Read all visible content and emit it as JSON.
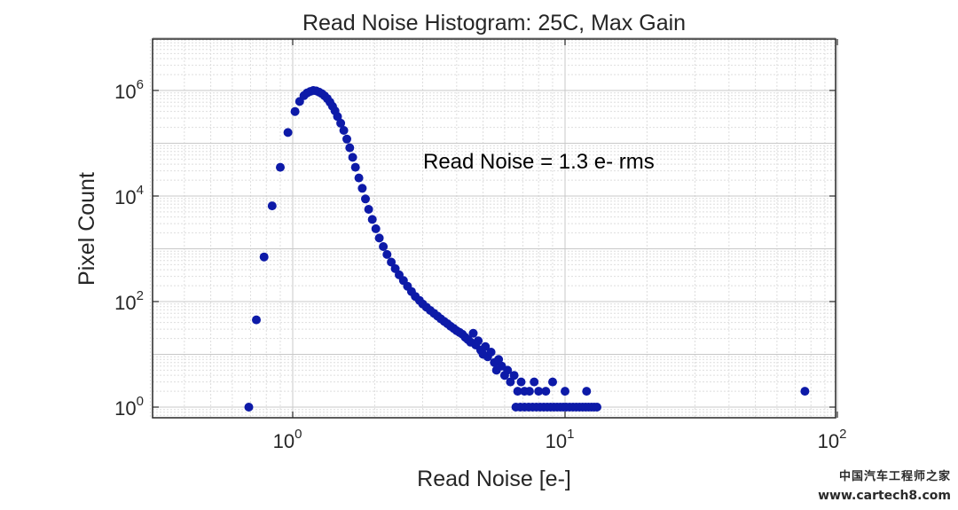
{
  "chart_data": {
    "type": "scatter",
    "title": "Read Noise Histogram: 25C, Max Gain",
    "xlabel": "Read Noise [e-]",
    "ylabel": "Pixel Count",
    "xscale": "log",
    "yscale": "log",
    "xlim": [
      0.3,
      100
    ],
    "ylim": [
      0.7,
      10000000
    ],
    "grid": true,
    "minor_grid": true,
    "marker_color": "#0d1aa8",
    "annotation": "Read Noise = 1.3 e- rms",
    "xticks": [
      {
        "base": "10",
        "exp": "0",
        "value": 1
      },
      {
        "base": "10",
        "exp": "1",
        "value": 10
      },
      {
        "base": "10",
        "exp": "2",
        "value": 100
      }
    ],
    "yticks": [
      {
        "base": "10",
        "exp": "0",
        "value": 1
      },
      {
        "base": "10",
        "exp": "2",
        "value": 100
      },
      {
        "base": "10",
        "exp": "4",
        "value": 10000
      },
      {
        "base": "10",
        "exp": "6",
        "value": 1000000
      }
    ],
    "points": [
      [
        0.69,
        1
      ],
      [
        0.735,
        45
      ],
      [
        0.785,
        700
      ],
      [
        0.84,
        6500
      ],
      [
        0.9,
        35000
      ],
      [
        0.96,
        160000
      ],
      [
        1.02,
        400000
      ],
      [
        1.06,
        620000
      ],
      [
        1.1,
        800000
      ],
      [
        1.13,
        900000
      ],
      [
        1.16,
        960000
      ],
      [
        1.19,
        1000000
      ],
      [
        1.22,
        980000
      ],
      [
        1.25,
        930000
      ],
      [
        1.28,
        870000
      ],
      [
        1.31,
        790000
      ],
      [
        1.34,
        700000
      ],
      [
        1.37,
        600000
      ],
      [
        1.4,
        500000
      ],
      [
        1.43,
        410000
      ],
      [
        1.46,
        320000
      ],
      [
        1.5,
        240000
      ],
      [
        1.54,
        175000
      ],
      [
        1.58,
        120000
      ],
      [
        1.62,
        82000
      ],
      [
        1.66,
        54000
      ],
      [
        1.7,
        35000
      ],
      [
        1.75,
        22000
      ],
      [
        1.8,
        14000
      ],
      [
        1.85,
        8800
      ],
      [
        1.9,
        5600
      ],
      [
        1.96,
        3600
      ],
      [
        2.02,
        2400
      ],
      [
        2.08,
        1600
      ],
      [
        2.15,
        1100
      ],
      [
        2.22,
        780
      ],
      [
        2.3,
        560
      ],
      [
        2.38,
        420
      ],
      [
        2.46,
        320
      ],
      [
        2.55,
        250
      ],
      [
        2.64,
        195
      ],
      [
        2.73,
        155
      ],
      [
        2.82,
        125
      ],
      [
        2.92,
        105
      ],
      [
        3.0,
        90
      ],
      [
        3.1,
        78
      ],
      [
        3.2,
        68
      ],
      [
        3.3,
        60
      ],
      [
        3.4,
        53
      ],
      [
        3.5,
        47
      ],
      [
        3.6,
        42
      ],
      [
        3.7,
        38
      ],
      [
        3.8,
        34
      ],
      [
        3.9,
        31
      ],
      [
        4.0,
        28
      ],
      [
        4.1,
        26
      ],
      [
        4.2,
        24
      ],
      [
        4.3,
        21
      ],
      [
        4.4,
        19
      ],
      [
        4.5,
        17
      ],
      [
        4.6,
        25
      ],
      [
        4.7,
        15
      ],
      [
        4.8,
        18
      ],
      [
        4.9,
        12
      ],
      [
        5.0,
        10
      ],
      [
        5.1,
        14
      ],
      [
        5.2,
        9
      ],
      [
        5.35,
        11
      ],
      [
        5.5,
        7
      ],
      [
        5.6,
        5
      ],
      [
        5.7,
        8
      ],
      [
        5.85,
        6
      ],
      [
        6.0,
        4
      ],
      [
        6.15,
        5
      ],
      [
        6.3,
        3
      ],
      [
        6.5,
        4
      ],
      [
        6.7,
        2
      ],
      [
        6.9,
        3
      ],
      [
        7.1,
        2
      ],
      [
        7.4,
        2
      ],
      [
        7.7,
        3
      ],
      [
        8.0,
        2
      ],
      [
        8.5,
        2
      ],
      [
        9.0,
        3
      ],
      [
        10.0,
        2
      ],
      [
        12.0,
        2
      ],
      [
        76.0,
        2
      ],
      [
        6.6,
        1
      ],
      [
        6.85,
        1
      ],
      [
        7.1,
        1
      ],
      [
        7.35,
        1
      ],
      [
        7.6,
        1
      ],
      [
        7.85,
        1
      ],
      [
        8.1,
        1
      ],
      [
        8.35,
        1
      ],
      [
        8.6,
        1
      ],
      [
        8.85,
        1
      ],
      [
        9.1,
        1
      ],
      [
        9.35,
        1
      ],
      [
        9.6,
        1
      ],
      [
        9.85,
        1
      ],
      [
        10.1,
        1
      ],
      [
        10.4,
        1
      ],
      [
        10.7,
        1
      ],
      [
        11.0,
        1
      ],
      [
        11.3,
        1
      ],
      [
        11.6,
        1
      ],
      [
        11.9,
        1
      ],
      [
        12.2,
        1
      ],
      [
        12.5,
        1
      ],
      [
        12.8,
        1
      ],
      [
        13.1,
        1
      ]
    ]
  },
  "watermark": {
    "line1": "中国汽车工程师之家",
    "line2": "www.cartech8.com"
  }
}
